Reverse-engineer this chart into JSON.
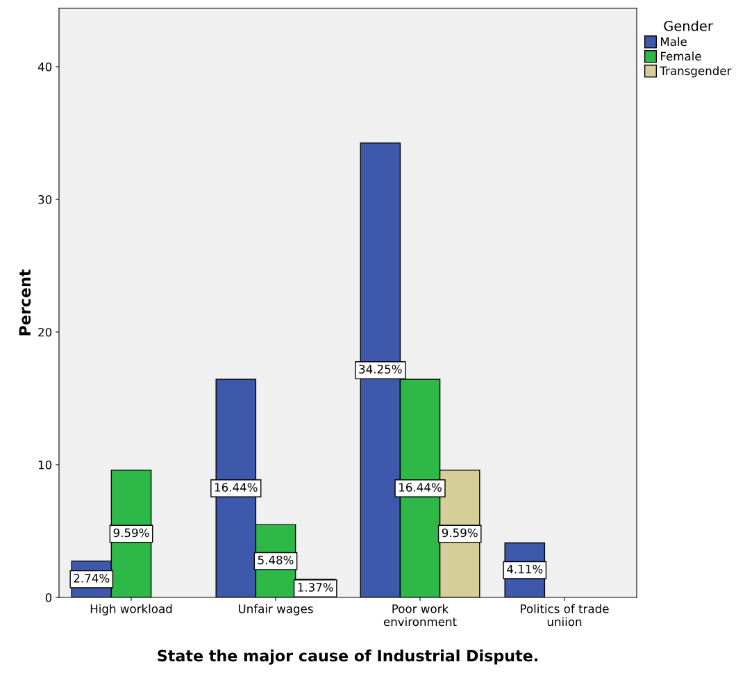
{
  "chart_data": {
    "type": "bar",
    "xlabel": "State the major cause of Industrial Dispute.",
    "ylabel": "Percent",
    "legend_title": "Gender",
    "categories": [
      "High workload",
      "Unfair wages",
      "Poor work\nenvironment",
      "Politics of trade\nuniion"
    ],
    "series": [
      {
        "name": "Male",
        "color": "#3e58ac",
        "values": [
          2.74,
          16.44,
          34.25,
          4.11
        ],
        "value_labels": [
          "2.74%",
          "16.44%",
          "34.25%",
          "4.11%"
        ]
      },
      {
        "name": "Female",
        "color": "#2eb848",
        "values": [
          9.59,
          5.48,
          16.44,
          null
        ],
        "value_labels": [
          "9.59%",
          "5.48%",
          "16.44%",
          null
        ]
      },
      {
        "name": "Transgender",
        "color": "#d5ce98",
        "values": [
          null,
          1.37,
          9.59,
          null
        ],
        "value_labels": [
          null,
          "1.37%",
          "9.59%",
          null
        ]
      }
    ],
    "ylim": [
      0,
      44.4
    ],
    "yticks": [
      0,
      10,
      20,
      30,
      40
    ],
    "grid": false,
    "legend": "top right"
  }
}
